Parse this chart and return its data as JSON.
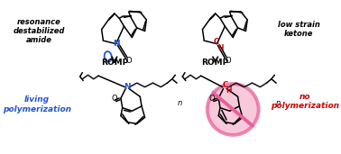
{
  "bg_color": "#ffffff",
  "text_color": "#1a1a1a",
  "blue_color": "#2255cc",
  "red_color": "#cc0000",
  "pink_color": "#e8609a",
  "pink_fill": "#f5b8cf",
  "label_top_left": "resonance\ndestabilized\namide",
  "label_top_right": "low strain\nketone",
  "label_romp": "ROMP",
  "label_bottom_left": "living\npolymerization",
  "label_bottom_right": "no\npolymerization",
  "figsize": [
    3.78,
    1.71
  ],
  "dpi": 100
}
